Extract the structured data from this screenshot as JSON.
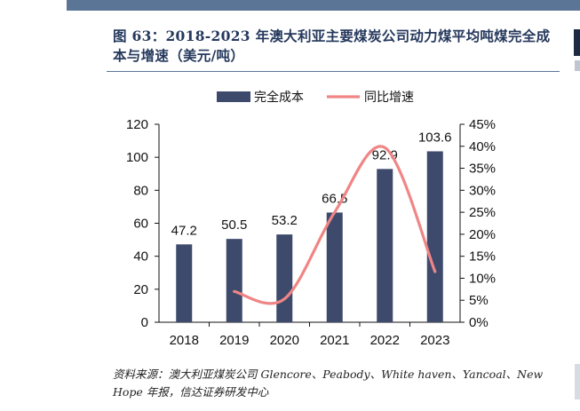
{
  "figure": {
    "title": "图 63：2018-2023 年澳大利亚主要煤炭公司动力煤平均吨煤完全成本与增速（美元/吨）",
    "source": "资料来源：澳大利亚煤炭公司 Glencore、Peabody、White haven、Yancoal、New Hope 年报，信达证券研发中心"
  },
  "chart_data": {
    "type": "bar",
    "categories": [
      "2018",
      "2019",
      "2020",
      "2021",
      "2022",
      "2023"
    ],
    "series": [
      {
        "name": "完全成本",
        "kind": "bar",
        "axis": "left",
        "color": "#3e4a6c",
        "values": [
          47.2,
          50.5,
          53.2,
          66.5,
          92.9,
          103.6
        ],
        "labels": [
          "47.2",
          "50.5",
          "53.2",
          "66.5",
          "92.9",
          "103.6"
        ]
      },
      {
        "name": "同比增速",
        "kind": "line",
        "axis": "right",
        "color": "#f08585",
        "smooth": true,
        "values": [
          null,
          7.0,
          5.3,
          25.0,
          39.7,
          11.5
        ]
      }
    ],
    "y_left": {
      "min": 0,
      "max": 120,
      "ticks": [
        "0",
        "20",
        "40",
        "60",
        "80",
        "100",
        "120"
      ]
    },
    "y_right": {
      "min": 0,
      "max": 45,
      "ticks": [
        "0%",
        "5%",
        "10%",
        "15%",
        "20%",
        "25%",
        "30%",
        "35%",
        "40%",
        "45%"
      ]
    },
    "legend": "top-center",
    "grid": false
  }
}
